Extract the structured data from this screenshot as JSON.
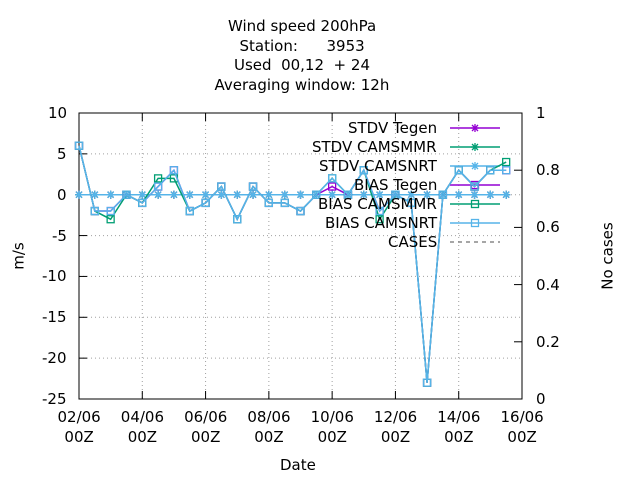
{
  "chart_data": {
    "type": "line",
    "title": [
      "Wind speed 200hPa",
      "Station:      3953",
      "Used  00,12  + 24",
      "Averaging window: 12h"
    ],
    "xlabel": "Date",
    "ylabel": "m/s",
    "y2label": "No cases",
    "x": [
      0,
      0.5,
      1,
      1.5,
      2,
      2.5,
      3,
      3.5,
      4,
      4.5,
      5,
      5.5,
      6,
      6.5,
      7,
      7.5,
      8,
      8.5,
      9,
      9.5,
      10,
      10.5,
      11,
      11.5,
      12,
      12.5,
      13,
      13.5
    ],
    "xlim": [
      0,
      14
    ],
    "xticks": [
      {
        "value": 0,
        "label": "02/06\n00Z"
      },
      {
        "value": 2,
        "label": "04/06\n00Z"
      },
      {
        "value": 4,
        "label": "06/06\n00Z"
      },
      {
        "value": 6,
        "label": "08/06\n00Z"
      },
      {
        "value": 8,
        "label": "10/06\n00Z"
      },
      {
        "value": 10,
        "label": "12/06\n00Z"
      },
      {
        "value": 12,
        "label": "14/06\n00Z"
      },
      {
        "value": 14,
        "label": "16/06\n00Z"
      }
    ],
    "ylim": [
      -25,
      10
    ],
    "yticks": [
      -25,
      -20,
      -15,
      -10,
      -5,
      0,
      5,
      10
    ],
    "y2lim": [
      0,
      1
    ],
    "y2ticks": [
      0,
      0.2,
      0.4,
      0.6,
      0.8,
      1
    ],
    "grid": true,
    "legend": "top-right",
    "series": [
      {
        "name": "STDV Tegen",
        "color": "#9400d3",
        "marker": "star",
        "values": [
          0,
          0,
          0,
          0,
          0,
          0,
          0,
          0,
          0,
          0,
          0,
          0,
          0,
          0,
          0,
          0,
          0,
          0,
          0,
          0,
          0,
          0,
          0,
          0,
          0,
          0,
          0,
          0
        ]
      },
      {
        "name": "STDV CAMSMMR",
        "color": "#009e73",
        "marker": "star",
        "values": [
          0,
          0,
          0,
          0,
          0,
          0,
          0,
          0,
          0,
          0,
          0,
          0,
          0,
          0,
          0,
          0,
          0,
          0,
          0,
          0,
          0,
          0,
          0,
          0,
          0,
          0,
          0,
          0
        ]
      },
      {
        "name": "STDV CAMSNRT",
        "color": "#56b4e9",
        "marker": "star",
        "values": [
          0,
          0,
          0,
          0,
          0,
          0,
          0,
          0,
          0,
          0,
          0,
          0,
          0,
          0,
          0,
          0,
          0,
          0,
          0,
          0,
          0,
          0,
          0,
          0,
          0,
          0,
          0,
          0
        ]
      },
      {
        "name": "BIAS Tegen",
        "color": "#9400d3",
        "marker": "square",
        "values": [
          6,
          -2,
          -2,
          0,
          -1,
          1,
          3,
          -2,
          -1,
          1,
          -3,
          1,
          -1,
          -1,
          -2,
          0,
          1,
          0,
          3,
          -2,
          0,
          -1,
          -23,
          0,
          3,
          1,
          3,
          3
        ]
      },
      {
        "name": "BIAS CAMSMMR",
        "color": "#009e73",
        "marker": "square",
        "values": [
          6,
          -2,
          -3,
          0,
          -1,
          2,
          2,
          -2,
          -1,
          1,
          -3,
          1,
          -1,
          -1,
          -2,
          0,
          2,
          0,
          3,
          -3,
          0,
          -1,
          -23,
          0,
          3,
          1,
          3,
          4
        ]
      },
      {
        "name": "BIAS CAMSNRT",
        "color": "#56b4e9",
        "marker": "square",
        "values": [
          6,
          -2,
          -2,
          0,
          -1,
          1,
          3,
          -2,
          -1,
          1,
          -3,
          1,
          -1,
          -1,
          -2,
          0,
          2,
          0,
          3,
          -2,
          0,
          -1,
          -23,
          0,
          3,
          1,
          3,
          3
        ]
      },
      {
        "name": "CASES",
        "color": "#888888",
        "marker": "dashed",
        "axis": "y2",
        "values": [
          null,
          null,
          null,
          null,
          null,
          null,
          null,
          null,
          null,
          null,
          null,
          null,
          null,
          null,
          null,
          null,
          null,
          null,
          null,
          null,
          null,
          null,
          null,
          null,
          null,
          null,
          null,
          null
        ]
      }
    ]
  }
}
